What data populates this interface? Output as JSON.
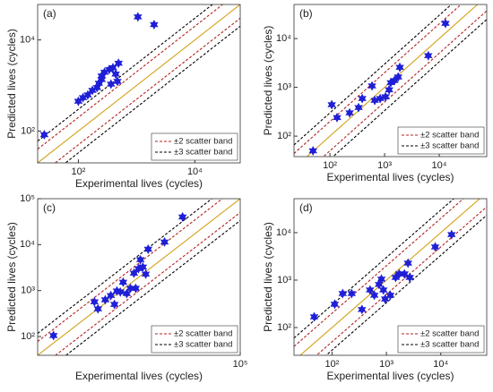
{
  "chart_data": [
    {
      "type": "scatter",
      "panel_label": "(a)",
      "x_label": "Experimental lives (cycles)",
      "y_label": "Predicted lives (cycles)",
      "log_x": true,
      "log_y": true,
      "xlim": [
        20,
        60000
      ],
      "ylim": [
        20,
        60000
      ],
      "xticks": [
        {
          "value": 100,
          "label": "10²"
        },
        {
          "value": 10000,
          "label": "10⁴"
        }
      ],
      "yticks": [
        {
          "value": 100,
          "label": "10²"
        },
        {
          "value": 10000,
          "label": "10⁴"
        }
      ],
      "color": "#1f1fd6",
      "diagonal_color": "#d4a017",
      "legend": "lower right",
      "bands": [
        {
          "name": "±2 scatter band",
          "factor": 2,
          "color": "#b22222"
        },
        {
          "name": "±3 scatter band",
          "factor": 3,
          "color": "#000000"
        }
      ],
      "x": [
        26,
        100,
        120,
        145,
        174,
        209,
        225,
        251,
        251,
        281,
        338,
        392,
        437,
        489,
        363,
        468,
        1050,
        1990
      ],
      "values": [
        83,
        450,
        540,
        620,
        780,
        900,
        1120,
        1350,
        1620,
        1950,
        2240,
        2460,
        1780,
        3080,
        1070,
        1230,
        32000,
        21700
      ]
    },
    {
      "type": "scatter",
      "panel_label": "(b)",
      "x_label": "Experimental lives (cycles)",
      "y_label": "Predicted lives (cycles)",
      "log_x": true,
      "log_y": true,
      "xlim": [
        22,
        74000
      ],
      "ylim": [
        38,
        50000
      ],
      "xticks": [
        {
          "value": 100,
          "label": "10²"
        },
        {
          "value": 1000,
          "label": "10³"
        },
        {
          "value": 10000,
          "label": "10⁴"
        }
      ],
      "yticks": [
        {
          "value": 100,
          "label": "10²"
        },
        {
          "value": 1000,
          "label": "10³"
        },
        {
          "value": 10000,
          "label": "10⁴"
        }
      ],
      "color": "#1f1fd6",
      "diagonal_color": "#d4a017",
      "legend": "lower right",
      "bands": [
        {
          "name": "±2 scatter band",
          "factor": 2,
          "color": "#b22222"
        },
        {
          "name": "±3 scatter band",
          "factor": 3,
          "color": "#000000"
        }
      ],
      "x": [
        49,
        108,
        135,
        229,
        334,
        390,
        590,
        660,
        830,
        1040,
        1210,
        1300,
        1510,
        1770,
        1900,
        6300,
        13000
      ],
      "values": [
        50,
        440,
        240,
        300,
        385,
        590,
        1070,
        540,
        590,
        640,
        890,
        1250,
        1380,
        1630,
        2570,
        4460,
        20500
      ]
    },
    {
      "type": "scatter",
      "panel_label": "(c)",
      "x_label": "Experimental lives (cycles)",
      "y_label": "Predicted lives (cycles)",
      "log_x": true,
      "log_y": true,
      "xlim": [
        39,
        100000
      ],
      "ylim": [
        39,
        100000
      ],
      "xticks": [
        {
          "value": 100000,
          "label": "10⁵"
        }
      ],
      "yticks": [
        {
          "value": 100,
          "label": "10²"
        },
        {
          "value": 1000,
          "label": "10³"
        },
        {
          "value": 10000,
          "label": "10⁴"
        },
        {
          "value": 100000,
          "label": "10⁵"
        }
      ],
      "color": "#1f1fd6",
      "diagonal_color": "#d4a017",
      "legend": "lower right",
      "bands": [
        {
          "name": "±2 scatter band",
          "factor": 2,
          "color": "#b22222"
        },
        {
          "name": "±3 scatter band",
          "factor": 3,
          "color": "#000000"
        }
      ],
      "x": [
        72,
        352,
        404,
        535,
        664,
        765,
        840,
        960,
        1070,
        1230,
        1420,
        1630,
        1740,
        1940,
        2090,
        2300,
        2570,
        2820,
        5330,
        10700
      ],
      "values": [
        105,
        570,
        400,
        630,
        780,
        500,
        980,
        935,
        1520,
        860,
        1120,
        2390,
        1120,
        3000,
        4700,
        3250,
        2280,
        7950,
        11400,
        40000
      ]
    },
    {
      "type": "scatter",
      "panel_label": "(d)",
      "x_label": "Experimental lives (cycles)",
      "y_label": "Predicted lives (cycles)",
      "log_x": true,
      "log_y": true,
      "xlim": [
        20,
        70000
      ],
      "ylim": [
        26,
        52000
      ],
      "xticks": [
        {
          "value": 100,
          "label": "10²"
        },
        {
          "value": 1000,
          "label": "10³"
        },
        {
          "value": 10000,
          "label": "10⁴"
        }
      ],
      "yticks": [
        {
          "value": 100,
          "label": "10²"
        },
        {
          "value": 1000,
          "label": "10³"
        },
        {
          "value": 10000,
          "label": "10⁴"
        }
      ],
      "color": "#1f1fd6",
      "diagonal_color": "#d4a017",
      "legend": "lower right",
      "bands": [
        {
          "name": "±2 scatter band",
          "factor": 2,
          "color": "#b22222"
        },
        {
          "name": "±3 scatter band",
          "factor": 3,
          "color": "#000000"
        }
      ],
      "x": [
        47,
        112,
        157,
        230,
        355,
        500,
        600,
        730,
        810,
        880,
        950,
        1180,
        1480,
        1720,
        2150,
        2500,
        2690,
        7900,
        15800
      ],
      "values": [
        168,
        310,
        520,
        520,
        240,
        620,
        480,
        810,
        1050,
        620,
        400,
        480,
        1140,
        1350,
        1350,
        2280,
        1140,
        5000,
        9100
      ]
    }
  ]
}
